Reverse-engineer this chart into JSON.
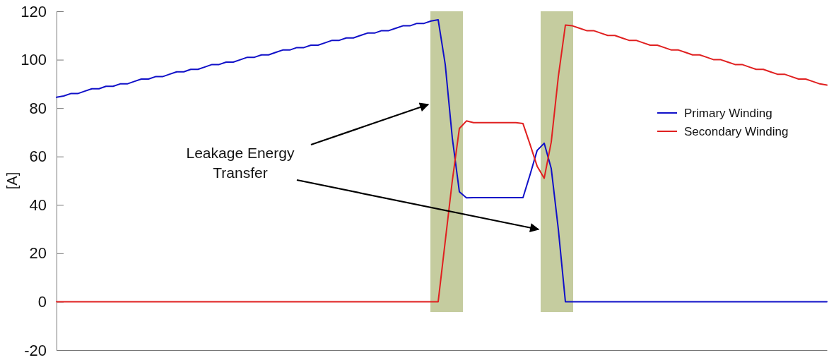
{
  "chart_data": {
    "type": "line",
    "ylabel": "[A]",
    "categories": [
      null,
      null,
      null,
      null,
      null,
      null,
      null,
      null,
      null,
      null,
      null,
      null,
      null,
      null,
      null,
      null,
      null,
      null,
      null,
      null,
      null,
      null,
      null,
      null,
      null,
      null,
      null,
      null,
      null,
      null,
      null,
      null,
      null,
      null,
      null,
      null,
      null,
      null,
      null,
      null,
      null,
      null,
      null,
      null,
      null,
      null,
      null,
      null,
      null,
      null,
      null,
      null,
      null,
      null,
      null,
      null,
      null,
      null,
      null,
      null,
      null,
      null,
      null,
      null,
      null,
      null,
      null,
      null,
      null,
      null,
      null,
      null,
      null,
      null,
      null,
      null,
      null,
      null,
      null,
      null,
      null,
      null,
      null,
      null,
      null,
      null,
      null,
      null,
      null,
      null,
      null,
      null,
      null,
      null,
      null,
      null,
      null,
      null,
      null,
      null,
      null,
      null,
      null,
      null,
      null,
      null,
      null,
      null,
      null,
      null
    ],
    "ylim": [
      -20,
      120
    ],
    "yticks": [
      -20,
      0,
      20,
      40,
      60,
      80,
      100,
      120
    ],
    "tick_labels": "y",
    "grid": false,
    "legend": "right",
    "line_style": "solid",
    "series": [
      {
        "name": "Primary Winding",
        "color": "#1010c8",
        "values": [
          84.5,
          85,
          86,
          86,
          87,
          88,
          88,
          89,
          89,
          90,
          90,
          91,
          92,
          92,
          93,
          93,
          94,
          95,
          95,
          96,
          96,
          97,
          98,
          98,
          99,
          99,
          100,
          101,
          101,
          102,
          102,
          103,
          104,
          104,
          105,
          105,
          106,
          106,
          107,
          108,
          108,
          109,
          109,
          110,
          111,
          111,
          112,
          112,
          113,
          114,
          114,
          115,
          115,
          116,
          116.5,
          98,
          67.6,
          45.4,
          42.9,
          43,
          43,
          43,
          43,
          43,
          43,
          43,
          43,
          52.5,
          62.5,
          65.5,
          55,
          30,
          0,
          0,
          0,
          0,
          0,
          0,
          0,
          0,
          0,
          0,
          0,
          0,
          0,
          0,
          0,
          0,
          0,
          0,
          0,
          0,
          0,
          0,
          0,
          0,
          0,
          0,
          0,
          0,
          0,
          0,
          0,
          0,
          0,
          0,
          0,
          0,
          0,
          0
        ]
      },
      {
        "name": "Secondary Winding",
        "color": "#e02020",
        "values": [
          0,
          0,
          0,
          0,
          0,
          0,
          0,
          0,
          0,
          0,
          0,
          0,
          0,
          0,
          0,
          0,
          0,
          0,
          0,
          0,
          0,
          0,
          0,
          0,
          0,
          0,
          0,
          0,
          0,
          0,
          0,
          0,
          0,
          0,
          0,
          0,
          0,
          0,
          0,
          0,
          0,
          0,
          0,
          0,
          0,
          0,
          0,
          0,
          0,
          0,
          0,
          0,
          0,
          0,
          0,
          25,
          50,
          71.6,
          74.7,
          74,
          74,
          74,
          74,
          74,
          74,
          74,
          73.6,
          65,
          56,
          51,
          66,
          93,
          114.3,
          114,
          113,
          112,
          112,
          111,
          110,
          110,
          109,
          108,
          108,
          107,
          106,
          106,
          105,
          104,
          104,
          103,
          102,
          102,
          101,
          100,
          100,
          99,
          98,
          98,
          97,
          96,
          96,
          95,
          94,
          94,
          93,
          92,
          92,
          91,
          90,
          89.5
        ]
      }
    ],
    "annotations": [
      "Leakage Energy\nTransfer"
    ]
  }
}
